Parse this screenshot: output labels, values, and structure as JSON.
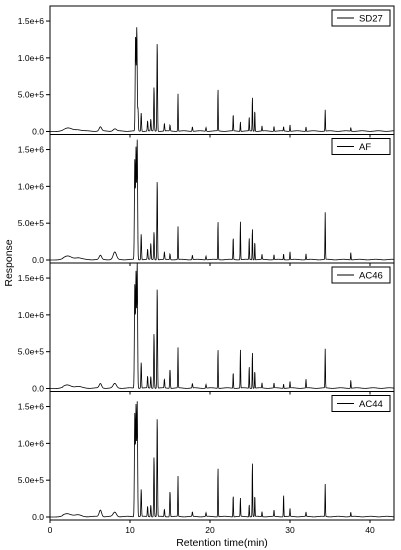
{
  "chart_data": {
    "type": "line",
    "ylabel": "Response",
    "xlabel": "Retention time(min)",
    "xlim": [
      0,
      43
    ],
    "ylim": [
      0,
      1650000
    ],
    "x_ticks": [
      0,
      10,
      20,
      30,
      40
    ],
    "x_tick_labels": [
      "0",
      "10",
      "20",
      "30",
      "40"
    ],
    "y_ticks": [
      0,
      500000,
      1000000,
      1500000
    ],
    "y_tick_labels": [
      "0.0",
      "5.0e+5",
      "1.0e+6",
      "1.5e+6"
    ],
    "legend_position": "top-right",
    "series": [
      {
        "name": "SD27",
        "peaks": [
          [
            2.2,
            40000,
            0.5
          ],
          [
            3.5,
            20000,
            0.4
          ],
          [
            6.3,
            55000,
            0.15
          ],
          [
            8.1,
            30000,
            0.2
          ],
          [
            10.7,
            1300000,
            0.05
          ],
          [
            10.85,
            1400000,
            0.05
          ],
          [
            11.0,
            300000,
            0.04
          ],
          [
            11.4,
            250000,
            0.04
          ],
          [
            12.2,
            140000,
            0.04
          ],
          [
            12.6,
            160000,
            0.04
          ],
          [
            13.0,
            600000,
            0.04
          ],
          [
            13.4,
            1210000,
            0.04
          ],
          [
            14.3,
            100000,
            0.04
          ],
          [
            15.0,
            80000,
            0.04
          ],
          [
            16.0,
            510000,
            0.03
          ],
          [
            17.8,
            60000,
            0.04
          ],
          [
            19.5,
            50000,
            0.04
          ],
          [
            21.0,
            580000,
            0.03
          ],
          [
            22.9,
            230000,
            0.03
          ],
          [
            23.8,
            130000,
            0.03
          ],
          [
            24.9,
            190000,
            0.03
          ],
          [
            25.3,
            470000,
            0.03
          ],
          [
            25.6,
            290000,
            0.03
          ],
          [
            26.5,
            70000,
            0.03
          ],
          [
            28.0,
            70000,
            0.03
          ],
          [
            29.2,
            60000,
            0.03
          ],
          [
            30.0,
            90000,
            0.03
          ],
          [
            32.0,
            60000,
            0.03
          ],
          [
            34.4,
            290000,
            0.03
          ],
          [
            37.6,
            50000,
            0.03
          ]
        ]
      },
      {
        "name": "AF",
        "peaks": [
          [
            2.2,
            45000,
            0.5
          ],
          [
            3.5,
            25000,
            0.4
          ],
          [
            6.3,
            55000,
            0.15
          ],
          [
            8.1,
            100000,
            0.2
          ],
          [
            10.6,
            1350000,
            0.05
          ],
          [
            10.75,
            1500000,
            0.05
          ],
          [
            10.9,
            1620000,
            0.05
          ],
          [
            11.4,
            350000,
            0.04
          ],
          [
            12.2,
            140000,
            0.04
          ],
          [
            12.6,
            220000,
            0.04
          ],
          [
            13.0,
            380000,
            0.04
          ],
          [
            13.4,
            1080000,
            0.04
          ],
          [
            14.3,
            100000,
            0.04
          ],
          [
            15.0,
            80000,
            0.04
          ],
          [
            16.0,
            450000,
            0.03
          ],
          [
            17.8,
            60000,
            0.04
          ],
          [
            19.5,
            50000,
            0.04
          ],
          [
            21.0,
            530000,
            0.03
          ],
          [
            22.9,
            310000,
            0.03
          ],
          [
            23.8,
            520000,
            0.03
          ],
          [
            24.9,
            300000,
            0.03
          ],
          [
            25.3,
            430000,
            0.03
          ],
          [
            25.6,
            250000,
            0.03
          ],
          [
            26.5,
            70000,
            0.03
          ],
          [
            28.0,
            70000,
            0.03
          ],
          [
            29.2,
            80000,
            0.03
          ],
          [
            30.0,
            110000,
            0.03
          ],
          [
            32.0,
            80000,
            0.03
          ],
          [
            34.4,
            640000,
            0.03
          ],
          [
            37.6,
            100000,
            0.03
          ]
        ]
      },
      {
        "name": "AC46",
        "peaks": [
          [
            2.2,
            40000,
            0.5
          ],
          [
            3.5,
            20000,
            0.4
          ],
          [
            6.3,
            60000,
            0.15
          ],
          [
            8.1,
            60000,
            0.2
          ],
          [
            10.6,
            1400000,
            0.05
          ],
          [
            10.75,
            1560000,
            0.05
          ],
          [
            10.9,
            1700000,
            0.05
          ],
          [
            11.4,
            350000,
            0.04
          ],
          [
            12.2,
            160000,
            0.04
          ],
          [
            12.6,
            160000,
            0.04
          ],
          [
            13.0,
            750000,
            0.04
          ],
          [
            13.4,
            1370000,
            0.04
          ],
          [
            14.3,
            120000,
            0.04
          ],
          [
            15.0,
            260000,
            0.04
          ],
          [
            16.0,
            550000,
            0.03
          ],
          [
            17.8,
            60000,
            0.04
          ],
          [
            19.5,
            50000,
            0.04
          ],
          [
            21.0,
            540000,
            0.03
          ],
          [
            22.9,
            220000,
            0.03
          ],
          [
            23.8,
            520000,
            0.03
          ],
          [
            24.9,
            300000,
            0.03
          ],
          [
            25.3,
            500000,
            0.03
          ],
          [
            25.6,
            240000,
            0.03
          ],
          [
            26.5,
            70000,
            0.03
          ],
          [
            28.0,
            70000,
            0.03
          ],
          [
            29.2,
            60000,
            0.03
          ],
          [
            30.0,
            90000,
            0.03
          ],
          [
            32.0,
            120000,
            0.03
          ],
          [
            34.4,
            530000,
            0.03
          ],
          [
            37.6,
            110000,
            0.03
          ]
        ]
      },
      {
        "name": "AC44",
        "peaks": [
          [
            2.2,
            40000,
            0.5
          ],
          [
            3.5,
            20000,
            0.4
          ],
          [
            6.3,
            90000,
            0.15
          ],
          [
            8.1,
            60000,
            0.2
          ],
          [
            10.6,
            1400000,
            0.05
          ],
          [
            10.75,
            1500000,
            0.05
          ],
          [
            10.9,
            1560000,
            0.05
          ],
          [
            11.4,
            370000,
            0.04
          ],
          [
            12.2,
            140000,
            0.04
          ],
          [
            12.6,
            160000,
            0.04
          ],
          [
            13.0,
            820000,
            0.04
          ],
          [
            13.4,
            1350000,
            0.04
          ],
          [
            14.3,
            100000,
            0.04
          ],
          [
            15.0,
            350000,
            0.04
          ],
          [
            16.0,
            550000,
            0.03
          ],
          [
            17.8,
            60000,
            0.04
          ],
          [
            19.5,
            50000,
            0.04
          ],
          [
            21.0,
            680000,
            0.03
          ],
          [
            22.9,
            300000,
            0.03
          ],
          [
            23.8,
            250000,
            0.03
          ],
          [
            24.9,
            170000,
            0.03
          ],
          [
            25.3,
            750000,
            0.03
          ],
          [
            25.6,
            290000,
            0.03
          ],
          [
            26.5,
            70000,
            0.03
          ],
          [
            28.0,
            90000,
            0.03
          ],
          [
            29.2,
            300000,
            0.03
          ],
          [
            30.0,
            110000,
            0.03
          ],
          [
            32.0,
            60000,
            0.03
          ],
          [
            34.4,
            440000,
            0.03
          ],
          [
            37.6,
            60000,
            0.03
          ]
        ]
      }
    ]
  }
}
